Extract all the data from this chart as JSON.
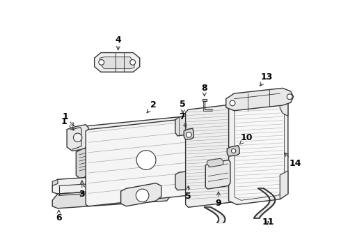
{
  "bg_color": "#ffffff",
  "line_color": "#333333",
  "label_color": "#000000",
  "label_fontsize": 9,
  "figsize": [
    4.9,
    3.6
  ],
  "dpi": 100
}
